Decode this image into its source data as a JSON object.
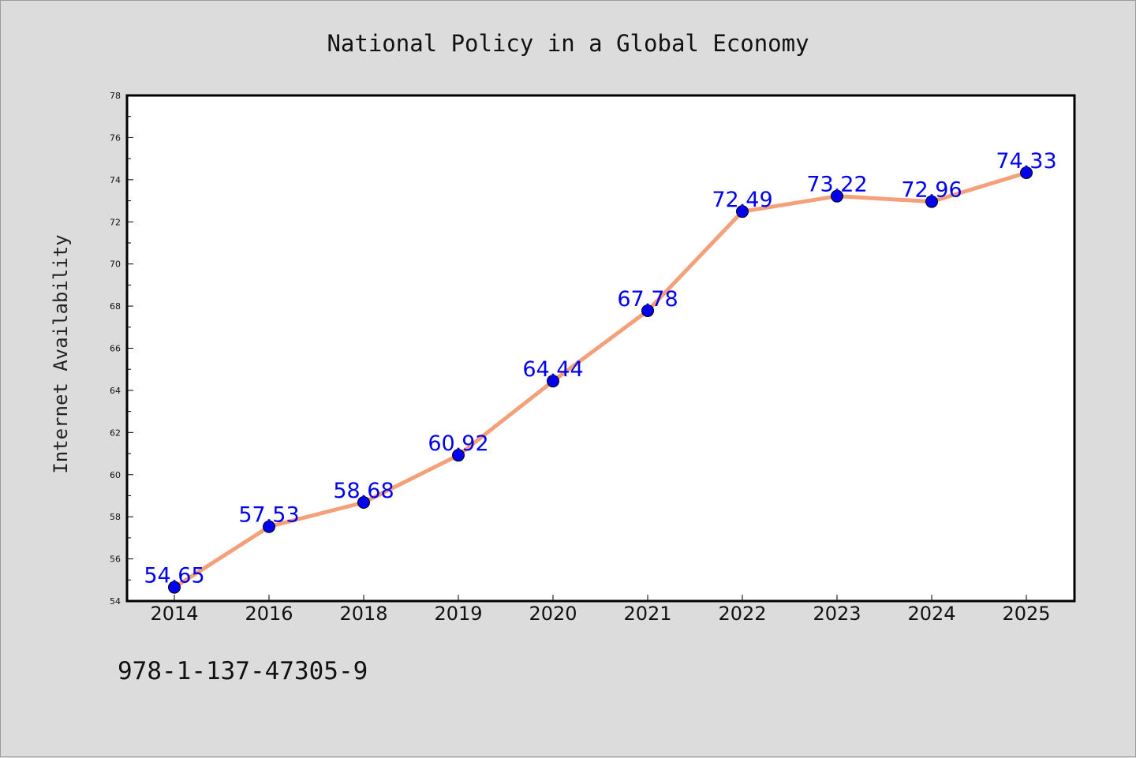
{
  "chart_data": {
    "type": "line",
    "title": "National Policy in a Global Economy",
    "xlabel": "",
    "ylabel": "Internet Availability",
    "categories": [
      "2014",
      "2016",
      "2018",
      "2019",
      "2020",
      "2021",
      "2022",
      "2023",
      "2024",
      "2025"
    ],
    "values": [
      54.65,
      57.53,
      58.68,
      60.92,
      64.44,
      67.78,
      72.49,
      73.22,
      72.96,
      74.33
    ],
    "data_labels": [
      "54.65",
      "57.53",
      "58.68",
      "60.92",
      "64.44",
      "67.78",
      "72.49",
      "73.22",
      "72.96",
      "74.33"
    ],
    "ylim": [
      54,
      78
    ],
    "yticks": [
      54,
      56,
      58,
      60,
      62,
      64,
      66,
      68,
      70,
      72,
      74,
      76,
      78
    ],
    "grid": false,
    "legend": "none",
    "line_color": "#f4a07a",
    "marker_color": "#0000ee",
    "label_color": "#0000ee"
  },
  "footer": {
    "isbn": "978-1-137-47305-9"
  }
}
